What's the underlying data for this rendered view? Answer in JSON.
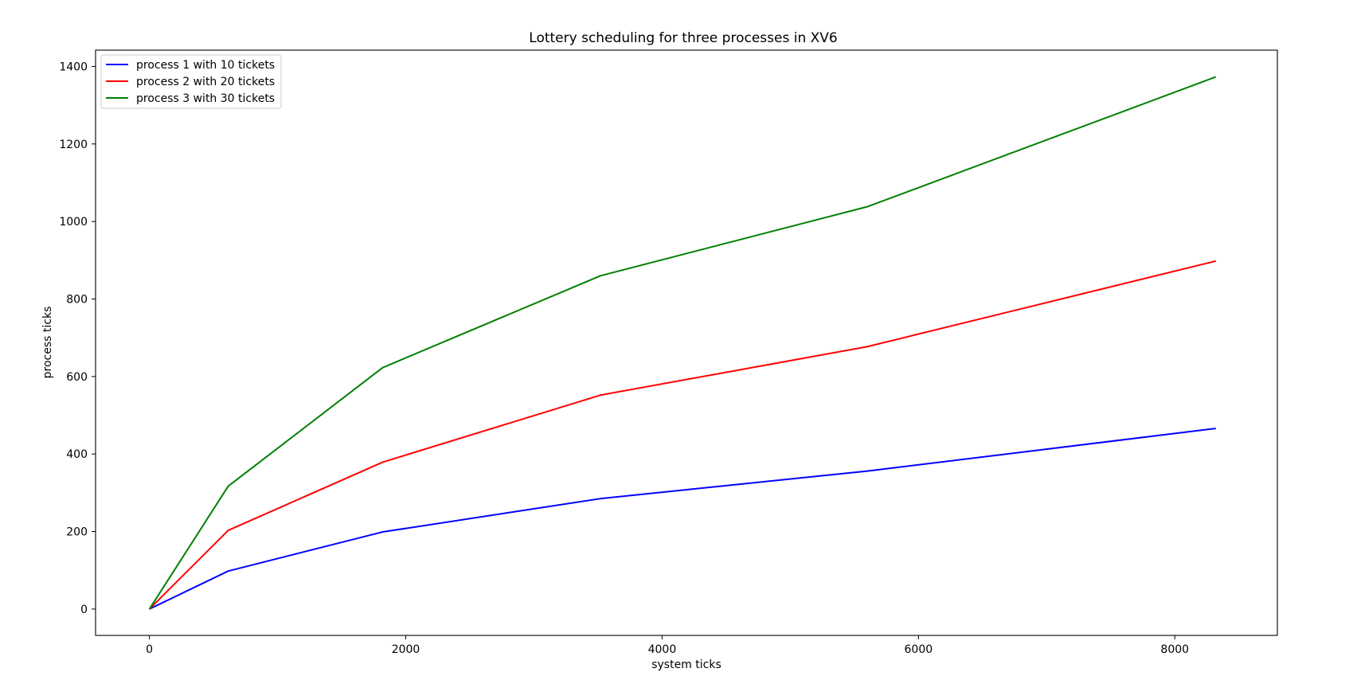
{
  "chart_data": {
    "type": "line",
    "title": "Lottery scheduling for three processes in XV6",
    "xlabel": "system ticks",
    "ylabel": "process ticks",
    "xlim": [
      -420,
      8800
    ],
    "ylim": [
      -68,
      1442
    ],
    "xticks": [
      0,
      2000,
      4000,
      6000,
      8000
    ],
    "yticks": [
      0,
      200,
      400,
      600,
      800,
      1000,
      1200,
      1400
    ],
    "legend_position": "upper-left",
    "grid": false,
    "x": [
      0,
      615,
      1820,
      3520,
      5600,
      8320
    ],
    "series": [
      {
        "name": "process 1 with 10 tickets",
        "color": "#0000ff",
        "values": [
          0,
          98,
          199,
          285,
          356,
          466
        ]
      },
      {
        "name": "process 2 with 20 tickets",
        "color": "#ff0000",
        "values": [
          0,
          203,
          379,
          552,
          677,
          898
        ]
      },
      {
        "name": "process 3 with 30 tickets",
        "color": "#008000",
        "values": [
          0,
          317,
          623,
          860,
          1038,
          1373
        ]
      }
    ]
  }
}
